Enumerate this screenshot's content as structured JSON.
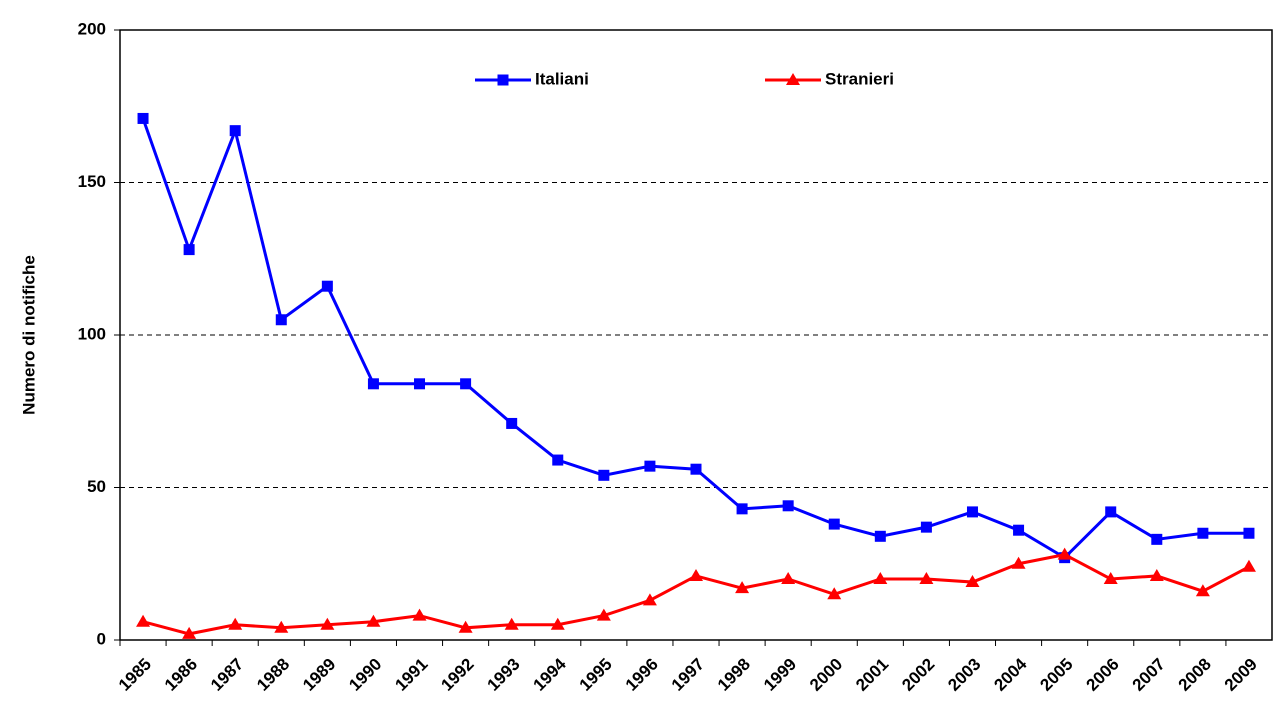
{
  "chart_data": {
    "type": "line",
    "y_label": "Numero di notifiche",
    "categories": [
      "1985",
      "1986",
      "1987",
      "1988",
      "1989",
      "1990",
      "1991",
      "1992",
      "1993",
      "1994",
      "1995",
      "1996",
      "1997",
      "1998",
      "1999",
      "2000",
      "2001",
      "2002",
      "2003",
      "2004",
      "2005",
      "2006",
      "2007",
      "2008",
      "2009"
    ],
    "series": [
      {
        "name": "Italiani",
        "color": "#0000ff",
        "marker": "square",
        "values": [
          171,
          128,
          167,
          105,
          116,
          84,
          84,
          84,
          71,
          59,
          54,
          57,
          56,
          43,
          44,
          38,
          34,
          37,
          42,
          36,
          27,
          42,
          33,
          35,
          35
        ]
      },
      {
        "name": "Stranieri",
        "color": "#ff0000",
        "marker": "triangle",
        "values": [
          6,
          2,
          5,
          4,
          5,
          6,
          8,
          4,
          5,
          5,
          8,
          13,
          21,
          17,
          20,
          15,
          20,
          20,
          19,
          25,
          28,
          20,
          21,
          16,
          24
        ]
      }
    ],
    "ylim": [
      0,
      200
    ],
    "yticks": [
      0,
      50,
      100,
      150,
      200
    ],
    "grid": true,
    "legend": "top"
  }
}
